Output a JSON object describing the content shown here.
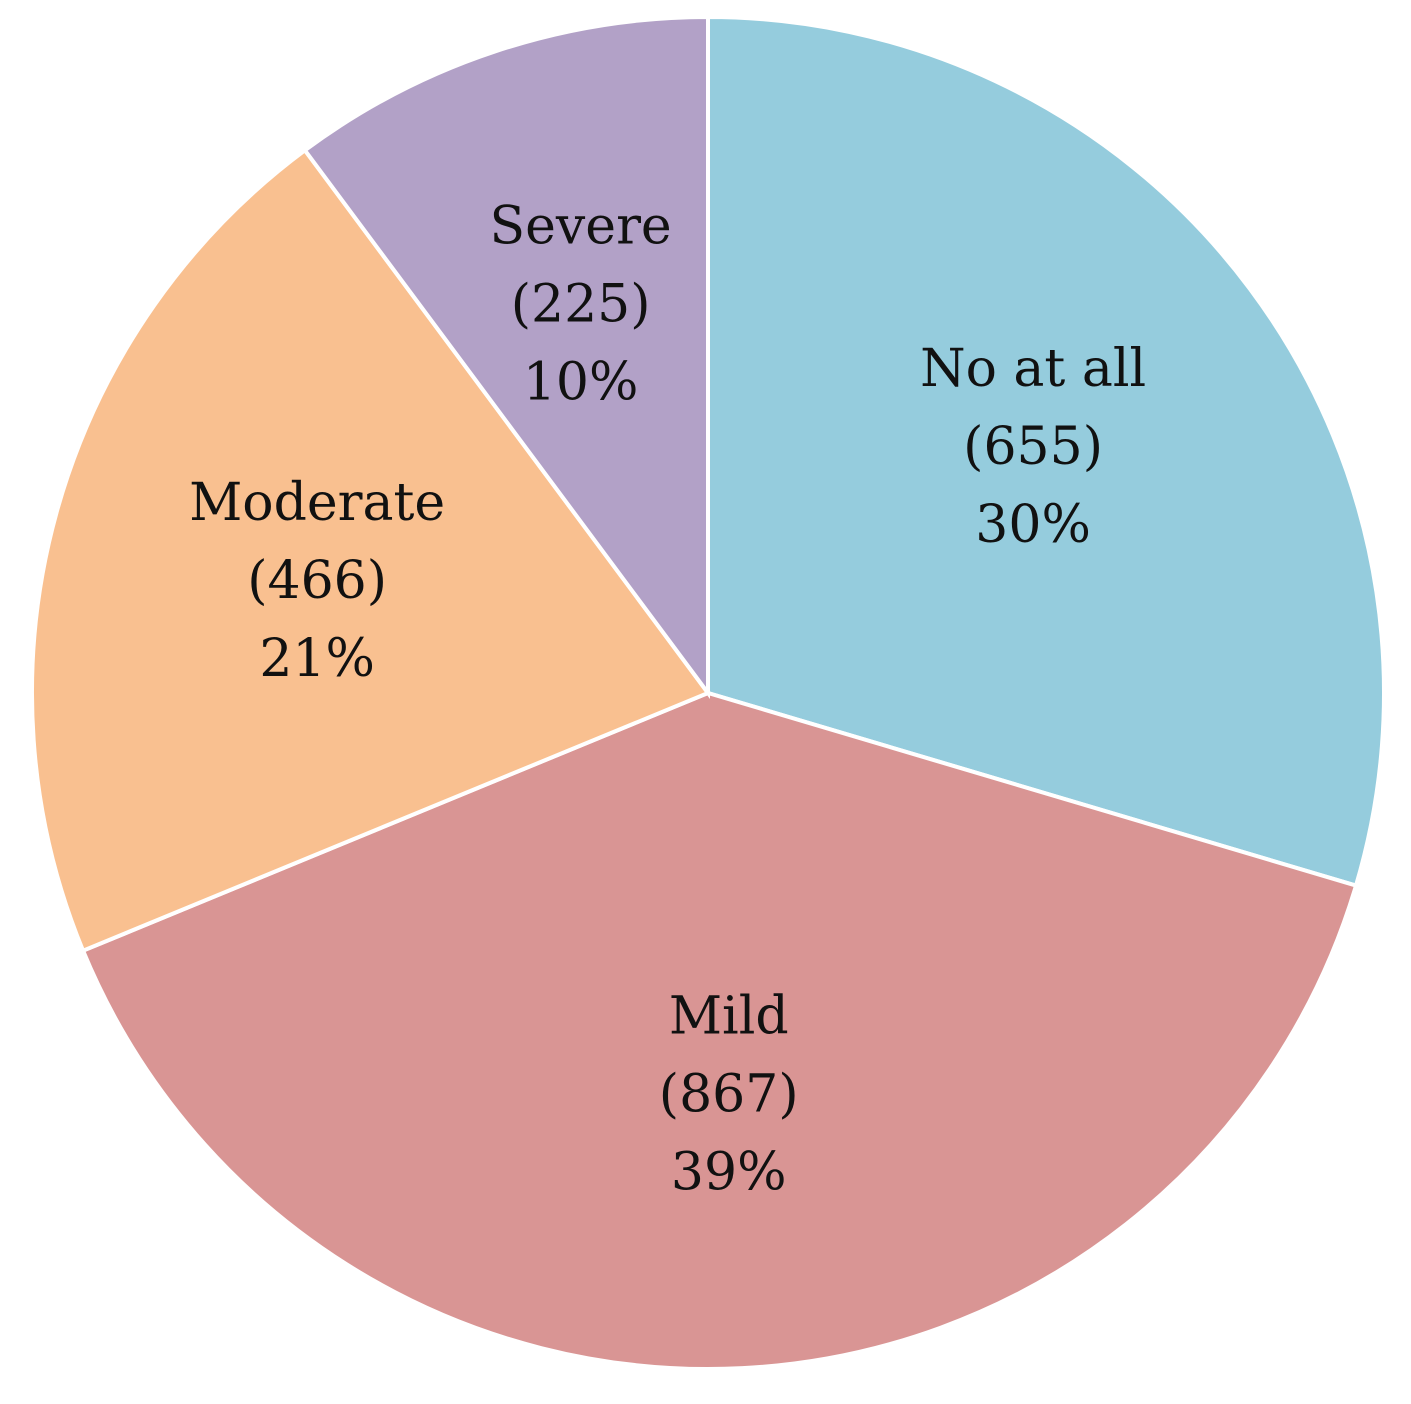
{
  "chart_data": {
    "type": "pie",
    "title": "",
    "start_angle": "12 o'clock",
    "direction": "clockwise",
    "slices": [
      {
        "name": "No at all",
        "count": 655,
        "percent_label": "30%",
        "count_label": "(655)",
        "color": "#95CCDD"
      },
      {
        "name": "Mild",
        "count": 867,
        "percent_label": "39%",
        "count_label": "(867)",
        "color": "#D99594"
      },
      {
        "name": "Moderate",
        "count": 466,
        "percent_label": "21%",
        "count_label": "(466)",
        "color": "#F9C090"
      },
      {
        "name": "Severe",
        "count": 225,
        "percent_label": "10%",
        "count_label": "(225)",
        "color": "#B2A1C7"
      }
    ]
  }
}
